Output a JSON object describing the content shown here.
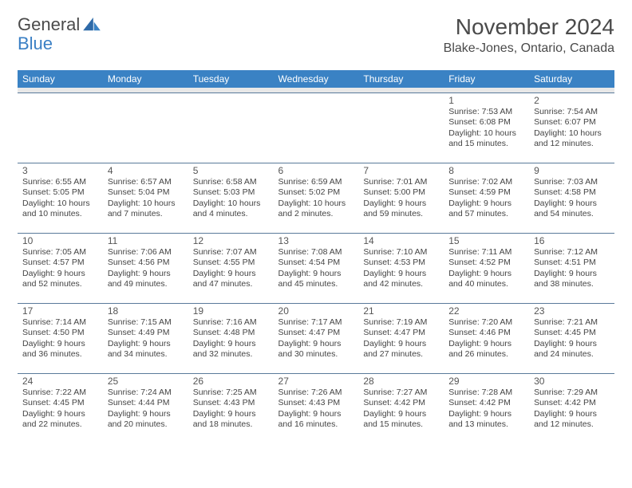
{
  "logo": {
    "text1": "General",
    "text2": "Blue"
  },
  "title": "November 2024",
  "location": "Blake-Jones, Ontario, Canada",
  "colors": {
    "header_bg": "#3a82c4",
    "header_text": "#ffffff",
    "spacer_bg": "#e8e8e8",
    "border": "#5a7a9a",
    "text": "#444444",
    "logo_blue": "#3a7fc4"
  },
  "weekdays": [
    "Sunday",
    "Monday",
    "Tuesday",
    "Wednesday",
    "Thursday",
    "Friday",
    "Saturday"
  ],
  "weeks": [
    [
      null,
      null,
      null,
      null,
      null,
      {
        "n": "1",
        "sr": "7:53 AM",
        "ss": "6:08 PM",
        "dl": "10 hours and 15 minutes."
      },
      {
        "n": "2",
        "sr": "7:54 AM",
        "ss": "6:07 PM",
        "dl": "10 hours and 12 minutes."
      }
    ],
    [
      {
        "n": "3",
        "sr": "6:55 AM",
        "ss": "5:05 PM",
        "dl": "10 hours and 10 minutes."
      },
      {
        "n": "4",
        "sr": "6:57 AM",
        "ss": "5:04 PM",
        "dl": "10 hours and 7 minutes."
      },
      {
        "n": "5",
        "sr": "6:58 AM",
        "ss": "5:03 PM",
        "dl": "10 hours and 4 minutes."
      },
      {
        "n": "6",
        "sr": "6:59 AM",
        "ss": "5:02 PM",
        "dl": "10 hours and 2 minutes."
      },
      {
        "n": "7",
        "sr": "7:01 AM",
        "ss": "5:00 PM",
        "dl": "9 hours and 59 minutes."
      },
      {
        "n": "8",
        "sr": "7:02 AM",
        "ss": "4:59 PM",
        "dl": "9 hours and 57 minutes."
      },
      {
        "n": "9",
        "sr": "7:03 AM",
        "ss": "4:58 PM",
        "dl": "9 hours and 54 minutes."
      }
    ],
    [
      {
        "n": "10",
        "sr": "7:05 AM",
        "ss": "4:57 PM",
        "dl": "9 hours and 52 minutes."
      },
      {
        "n": "11",
        "sr": "7:06 AM",
        "ss": "4:56 PM",
        "dl": "9 hours and 49 minutes."
      },
      {
        "n": "12",
        "sr": "7:07 AM",
        "ss": "4:55 PM",
        "dl": "9 hours and 47 minutes."
      },
      {
        "n": "13",
        "sr": "7:08 AM",
        "ss": "4:54 PM",
        "dl": "9 hours and 45 minutes."
      },
      {
        "n": "14",
        "sr": "7:10 AM",
        "ss": "4:53 PM",
        "dl": "9 hours and 42 minutes."
      },
      {
        "n": "15",
        "sr": "7:11 AM",
        "ss": "4:52 PM",
        "dl": "9 hours and 40 minutes."
      },
      {
        "n": "16",
        "sr": "7:12 AM",
        "ss": "4:51 PM",
        "dl": "9 hours and 38 minutes."
      }
    ],
    [
      {
        "n": "17",
        "sr": "7:14 AM",
        "ss": "4:50 PM",
        "dl": "9 hours and 36 minutes."
      },
      {
        "n": "18",
        "sr": "7:15 AM",
        "ss": "4:49 PM",
        "dl": "9 hours and 34 minutes."
      },
      {
        "n": "19",
        "sr": "7:16 AM",
        "ss": "4:48 PM",
        "dl": "9 hours and 32 minutes."
      },
      {
        "n": "20",
        "sr": "7:17 AM",
        "ss": "4:47 PM",
        "dl": "9 hours and 30 minutes."
      },
      {
        "n": "21",
        "sr": "7:19 AM",
        "ss": "4:47 PM",
        "dl": "9 hours and 27 minutes."
      },
      {
        "n": "22",
        "sr": "7:20 AM",
        "ss": "4:46 PM",
        "dl": "9 hours and 26 minutes."
      },
      {
        "n": "23",
        "sr": "7:21 AM",
        "ss": "4:45 PM",
        "dl": "9 hours and 24 minutes."
      }
    ],
    [
      {
        "n": "24",
        "sr": "7:22 AM",
        "ss": "4:45 PM",
        "dl": "9 hours and 22 minutes."
      },
      {
        "n": "25",
        "sr": "7:24 AM",
        "ss": "4:44 PM",
        "dl": "9 hours and 20 minutes."
      },
      {
        "n": "26",
        "sr": "7:25 AM",
        "ss": "4:43 PM",
        "dl": "9 hours and 18 minutes."
      },
      {
        "n": "27",
        "sr": "7:26 AM",
        "ss": "4:43 PM",
        "dl": "9 hours and 16 minutes."
      },
      {
        "n": "28",
        "sr": "7:27 AM",
        "ss": "4:42 PM",
        "dl": "9 hours and 15 minutes."
      },
      {
        "n": "29",
        "sr": "7:28 AM",
        "ss": "4:42 PM",
        "dl": "9 hours and 13 minutes."
      },
      {
        "n": "30",
        "sr": "7:29 AM",
        "ss": "4:42 PM",
        "dl": "9 hours and 12 minutes."
      }
    ]
  ],
  "labels": {
    "sunrise": "Sunrise:",
    "sunset": "Sunset:",
    "daylight": "Daylight:"
  }
}
